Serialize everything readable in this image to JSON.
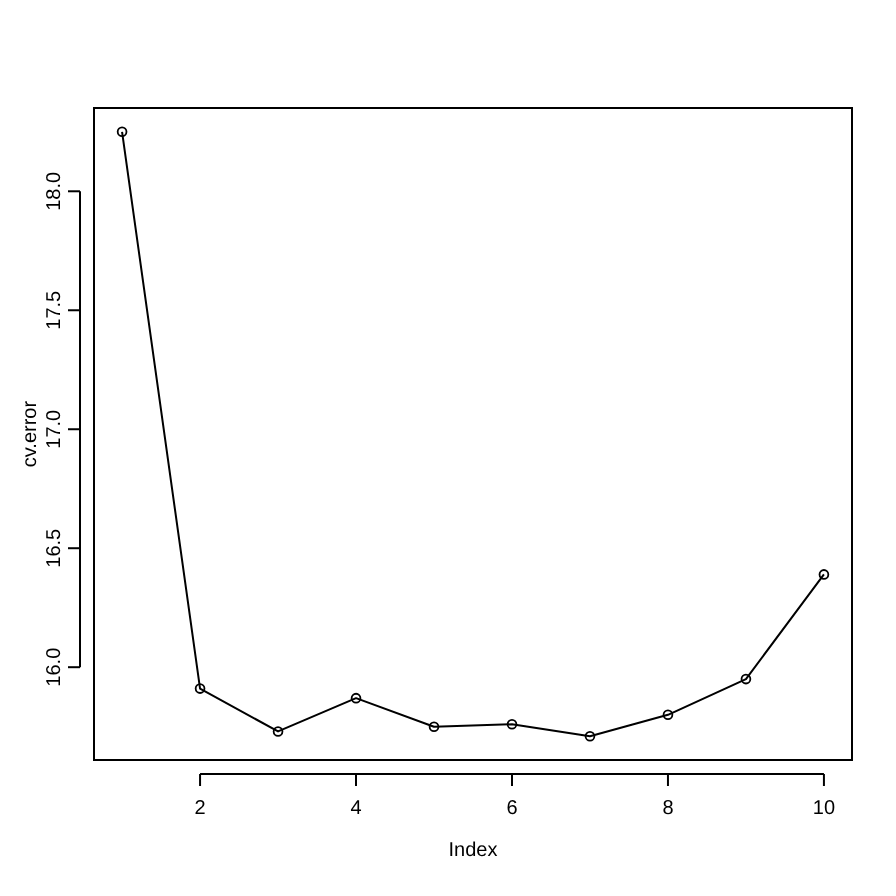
{
  "chart_data": {
    "type": "line",
    "xlabel": "Index",
    "ylabel": "cv.error",
    "x": [
      1,
      2,
      3,
      4,
      5,
      6,
      7,
      8,
      9,
      10
    ],
    "series": [
      {
        "color": "#000000",
        "values": [
          18.25,
          15.91,
          15.73,
          15.87,
          15.75,
          15.76,
          15.71,
          15.8,
          15.95,
          16.39
        ]
      }
    ],
    "xlim": [
      0.64,
      10.36
    ],
    "ylim": [
      15.61,
      18.35
    ],
    "xticks": [
      2,
      4,
      6,
      8,
      10
    ],
    "yticks": [
      {
        "value": 16,
        "label": "16.0"
      },
      16.5,
      {
        "value": 17,
        "label": "17.0"
      },
      17.5,
      {
        "value": 18,
        "label": "18.0"
      }
    ],
    "marker": "circle",
    "line_style": "solid",
    "grid": false
  }
}
